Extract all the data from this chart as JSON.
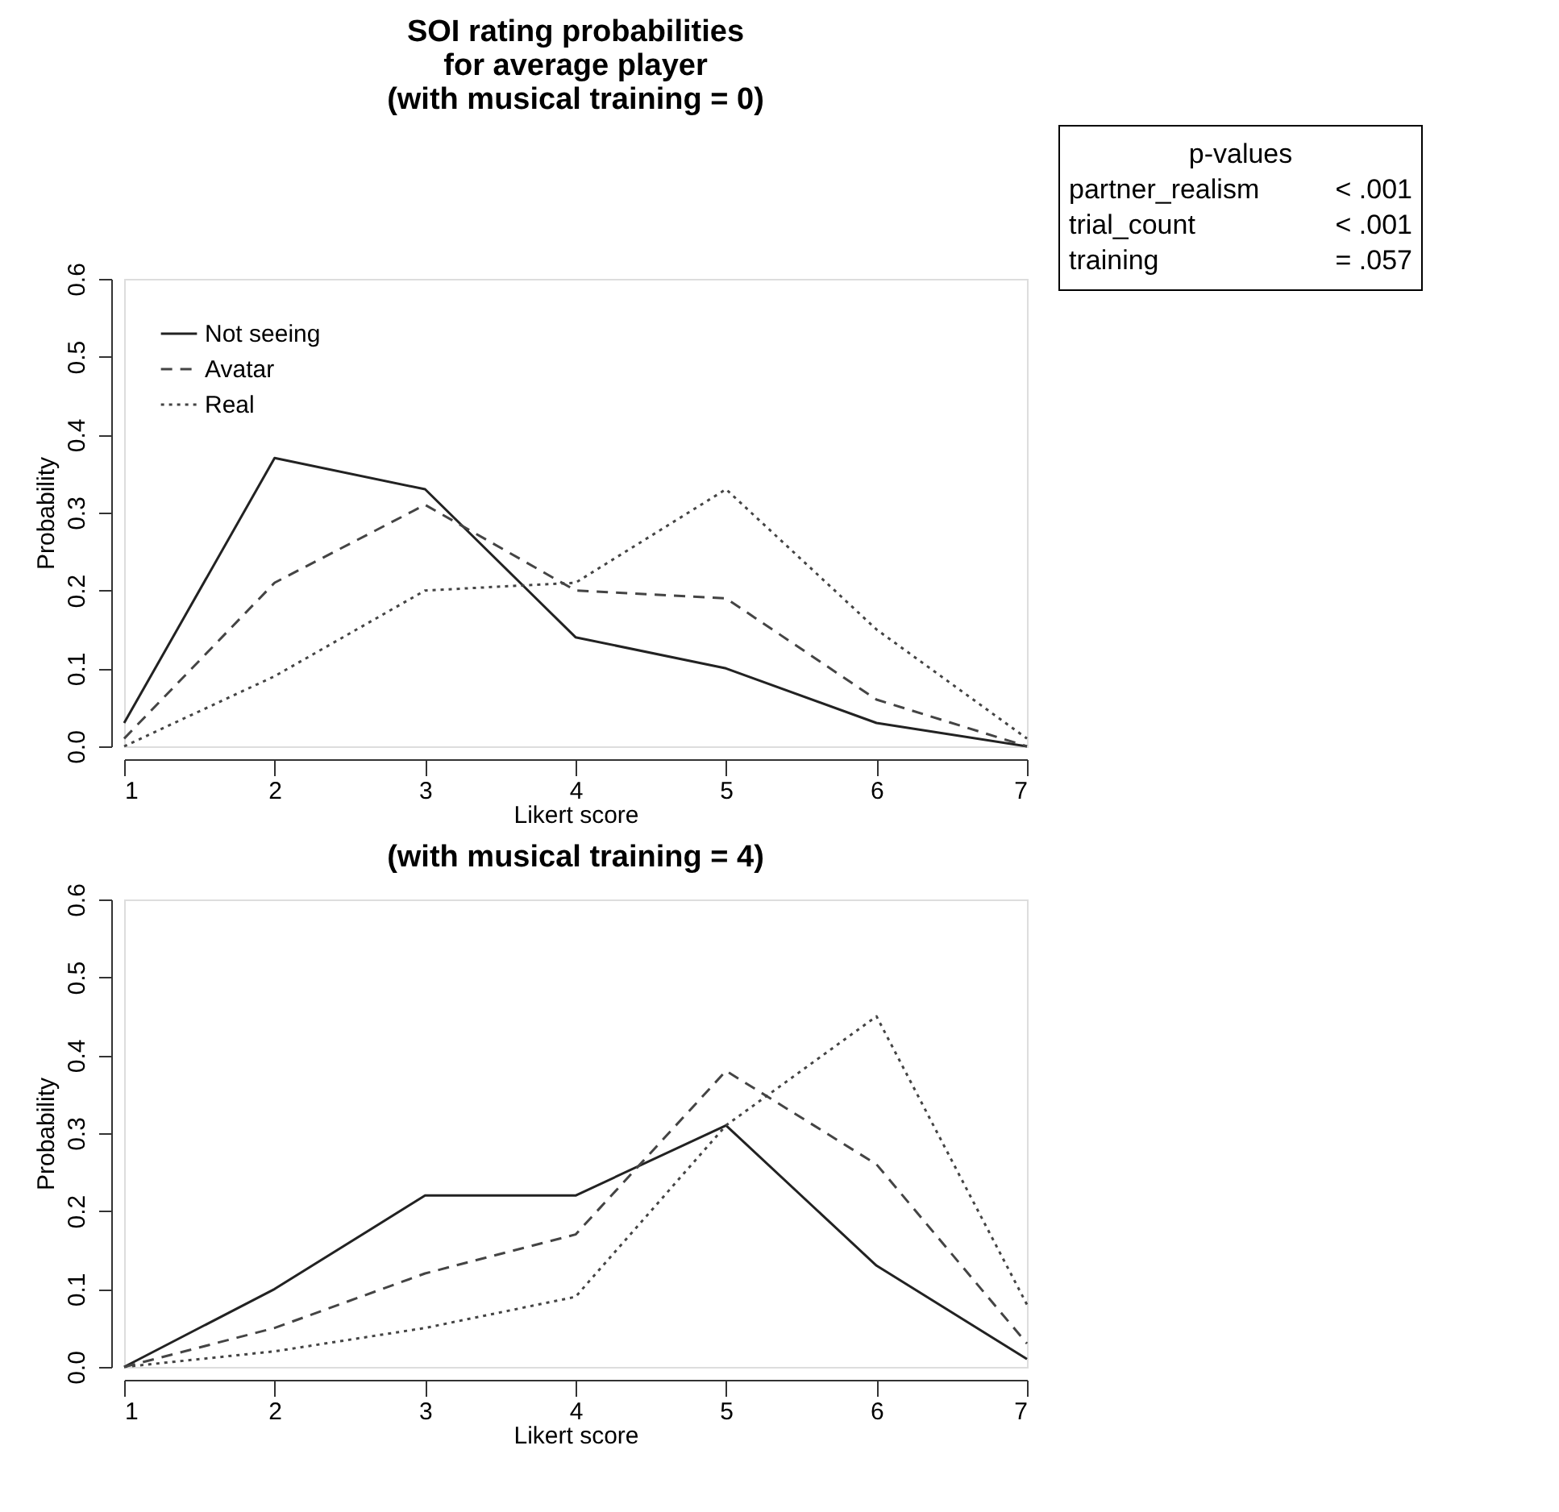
{
  "chart_data": [
    {
      "type": "line",
      "title": "SOI rating probabilities\nfor average player\n(with musical training = 0)",
      "xlabel": "Likert score",
      "ylabel": "Probability",
      "x": [
        1,
        2,
        3,
        4,
        5,
        6,
        7
      ],
      "xlim": [
        1,
        7
      ],
      "xticks": [
        1,
        2,
        3,
        4,
        5,
        6,
        7
      ],
      "ylim": [
        0,
        0.6
      ],
      "yticks": [
        {
          "value": 0,
          "label": "0.0"
        },
        0.1,
        0.2,
        0.3,
        0.4,
        0.5,
        0.6
      ],
      "grid": false,
      "legend": "top left",
      "marker": "none",
      "annotations": [
        "p-values",
        "partner_realism",
        "< .001",
        "trial_count",
        "< .001",
        "training",
        "= .057"
      ],
      "series": [
        {
          "name": "Not seeing",
          "color": "#222222",
          "line_style": "solid",
          "values": [
            0.03,
            0.37,
            0.33,
            0.14,
            0.1,
            0.03,
            0.0
          ]
        },
        {
          "name": "Avatar",
          "color": "#444444",
          "line_style": "dashed",
          "values": [
            0.01,
            0.21,
            0.31,
            0.2,
            0.19,
            0.06,
            0.0
          ]
        },
        {
          "name": "Real",
          "color": "#444444",
          "line_style": "dotted",
          "values": [
            0.0,
            0.09,
            0.2,
            0.21,
            0.33,
            0.15,
            0.01
          ]
        }
      ]
    },
    {
      "type": "line",
      "title": "(with musical training = 4)",
      "xlabel": "Likert score",
      "ylabel": "Probability",
      "x": [
        1,
        2,
        3,
        4,
        5,
        6,
        7
      ],
      "xlim": [
        1,
        7
      ],
      "xticks": [
        1,
        2,
        3,
        4,
        5,
        6,
        7
      ],
      "ylim": [
        0,
        0.6
      ],
      "yticks": [
        {
          "value": 0,
          "label": "0.0"
        },
        0.1,
        0.2,
        0.3,
        0.4,
        0.5,
        0.6
      ],
      "grid": false,
      "legend": "top left",
      "marker": "none",
      "series": [
        {
          "name": "Not seeing",
          "color": "#222222",
          "line_style": "solid",
          "values": [
            0.0,
            0.1,
            0.22,
            0.22,
            0.31,
            0.13,
            0.01
          ]
        },
        {
          "name": "Avatar",
          "color": "#444444",
          "line_style": "dashed",
          "values": [
            0.0,
            0.05,
            0.12,
            0.17,
            0.38,
            0.26,
            0.03
          ]
        },
        {
          "name": "Real",
          "color": "#444444",
          "line_style": "dotted",
          "values": [
            0.0,
            0.02,
            0.05,
            0.09,
            0.31,
            0.45,
            0.08
          ]
        }
      ]
    }
  ]
}
